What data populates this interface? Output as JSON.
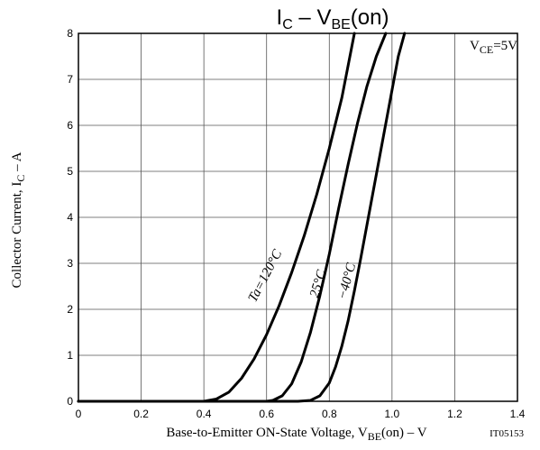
{
  "chart_data": {
    "type": "line",
    "title": {
      "main": "I",
      "main_sub": "C",
      "dash": " – ",
      "secondary": "V",
      "secondary_sub": "BE",
      "suffix": "(on)"
    },
    "xlabel": {
      "prefix": "Base-to-Emitter ON-State Voltage, V",
      "sub": "BE",
      "suffix": "(on)  –  V"
    },
    "ylabel": {
      "prefix": "Collector Current, I",
      "sub": "C",
      "suffix": "  –  A"
    },
    "figure_code": "IT05153",
    "condition": {
      "prefix": "V",
      "sub": "CE",
      "suffix": "=5V"
    },
    "xlim": [
      0,
      1.4
    ],
    "ylim": [
      0,
      8
    ],
    "xticks": [
      0,
      0.2,
      0.4,
      0.6,
      0.8,
      1.0,
      1.2,
      1.4
    ],
    "xtick_labels": [
      "0",
      "0.2",
      "0.4",
      "0.6",
      "0.8",
      "1.0",
      "1.2",
      "1.4"
    ],
    "yticks": [
      0,
      1,
      2,
      3,
      4,
      5,
      6,
      7,
      8
    ],
    "ytick_labels": [
      "0",
      "1",
      "2",
      "3",
      "4",
      "5",
      "6",
      "7",
      "8"
    ],
    "grid": true,
    "series": [
      {
        "name": "Ta=120°C",
        "x": [
          0.0,
          0.4,
          0.44,
          0.48,
          0.52,
          0.56,
          0.6,
          0.64,
          0.68,
          0.72,
          0.76,
          0.8,
          0.84,
          0.88
        ],
        "y": [
          0.0,
          0.0,
          0.05,
          0.2,
          0.5,
          0.92,
          1.45,
          2.08,
          2.8,
          3.6,
          4.5,
          5.5,
          6.6,
          8.0
        ]
      },
      {
        "name": "25°C",
        "x": [
          0.0,
          0.6,
          0.62,
          0.65,
          0.68,
          0.71,
          0.74,
          0.77,
          0.8,
          0.83,
          0.86,
          0.89,
          0.92,
          0.95,
          0.98
        ],
        "y": [
          0.0,
          0.0,
          0.02,
          0.12,
          0.38,
          0.85,
          1.5,
          2.3,
          3.2,
          4.2,
          5.15,
          6.05,
          6.85,
          7.5,
          8.0
        ]
      },
      {
        "name": "−40°C",
        "x": [
          0.0,
          0.7,
          0.74,
          0.77,
          0.8,
          0.82,
          0.84,
          0.86,
          0.88,
          0.9,
          0.93,
          0.96,
          0.99,
          1.02,
          1.04
        ],
        "y": [
          0.0,
          0.0,
          0.02,
          0.12,
          0.4,
          0.75,
          1.2,
          1.75,
          2.4,
          3.1,
          4.2,
          5.3,
          6.4,
          7.5,
          8.0
        ]
      }
    ]
  }
}
